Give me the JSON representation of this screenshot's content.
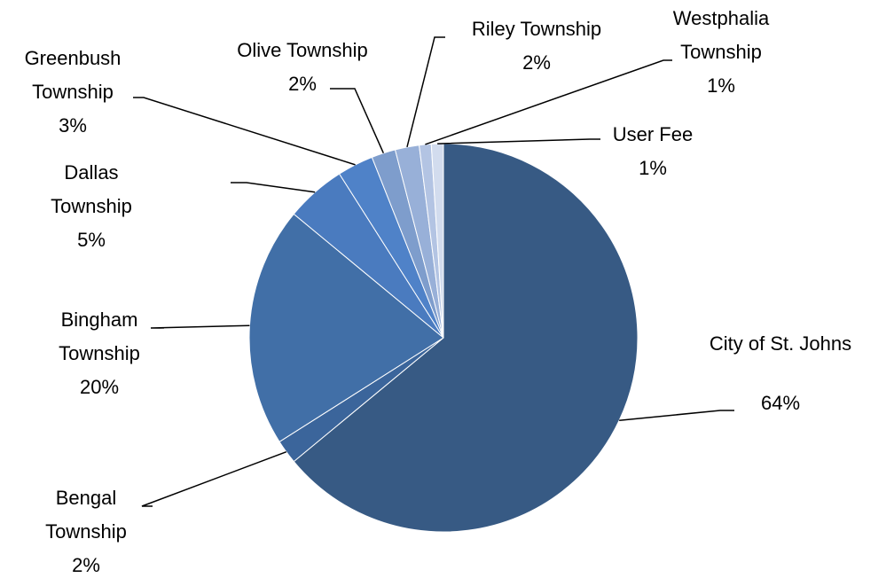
{
  "chart_data": {
    "type": "pie",
    "categories": [
      "City of St. Johns",
      "Bengal Township",
      "Bingham Township",
      "Dallas Township",
      "Greenbush Township",
      "Olive Township",
      "Riley Township",
      "Westphalia Township",
      "User Fee"
    ],
    "values": [
      64,
      2,
      20,
      5,
      3,
      2,
      2,
      1,
      1
    ],
    "value_labels": [
      "64%",
      "2%",
      "20%",
      "5%",
      "3%",
      "2%",
      "2%",
      "1%",
      "1%"
    ],
    "colors": [
      "#375a84",
      "#3b659b",
      "#416fa7",
      "#4a7bbf",
      "#4f82c8",
      "#7e9dcc",
      "#98b0d8",
      "#b3c4e3",
      "#d2dcee"
    ]
  }
}
